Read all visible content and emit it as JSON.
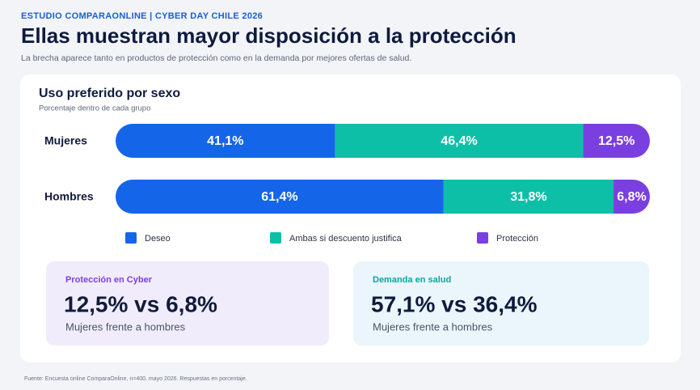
{
  "header": {
    "kicker": "ESTUDIO COMPARAONLINE | CYBER DAY CHILE 2026",
    "title": "Ellas muestran mayor disposición a la protección",
    "subtitle": "La brecha aparece tanto en productos de protección como en la demanda por mejores ofertas de salud."
  },
  "chart_data": {
    "type": "bar",
    "orientation": "horizontal",
    "stacked": true,
    "title": "Uso preferido por sexo",
    "subtitle": "Porcentaje dentro de cada grupo",
    "categories": [
      "Mujeres",
      "Hombres"
    ],
    "series": [
      {
        "name": "Deseo",
        "color": "#1565e8",
        "values": [
          41.1,
          61.4
        ],
        "value_labels": [
          "41,1%",
          "61,4%"
        ]
      },
      {
        "name": "Ambas si descuento justifica",
        "color": "#0dbfa6",
        "values": [
          46.4,
          31.8
        ],
        "value_labels": [
          "46,4%",
          "31,8%"
        ]
      },
      {
        "name": "Protección",
        "color": "#7a3fe0",
        "values": [
          12.5,
          6.8
        ],
        "value_labels": [
          "12,5%",
          "6,8%"
        ]
      }
    ]
  },
  "cards": [
    {
      "label": "Protección en Cyber",
      "value": "12,5% vs 6,8%",
      "note": "Mujeres frente a hombres"
    },
    {
      "label": "Demanda en salud",
      "value": "57,1% vs 36,4%",
      "note": "Mujeres frente a hombres"
    }
  ],
  "footer": {
    "source": "Fuente: Encuesta online ComparaOnline, n=400, mayo 2026. Respuestas en porcentaje."
  }
}
